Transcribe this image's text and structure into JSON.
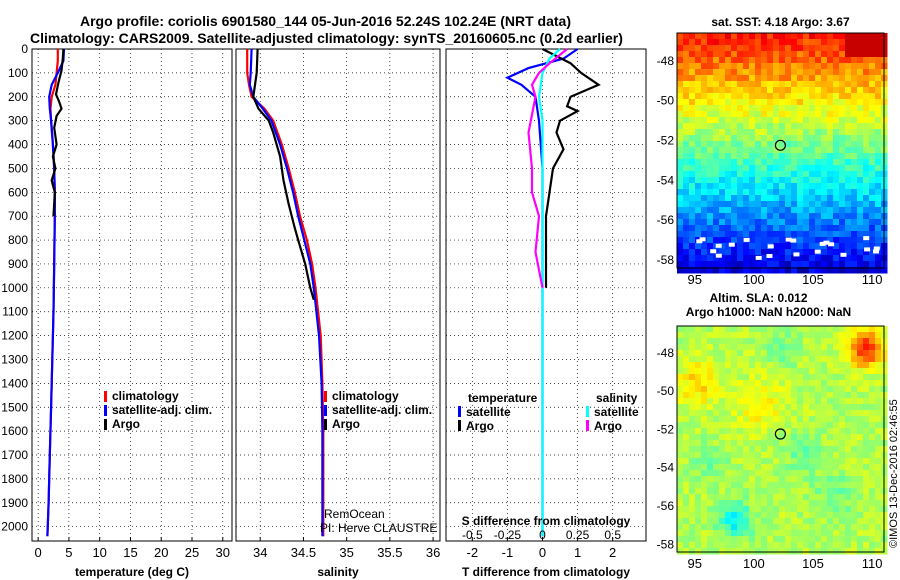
{
  "header": {
    "title1": "Argo profile: coriolis 6901580_144 05-Jun-2016 52.24S 102.24E (NRT data)",
    "title2": "Climatology: CARS2009. Satellite-adjusted climatology: synTS_20160605.nc (0.2d earlier)"
  },
  "colors": {
    "climatology": "#ff0000",
    "satellite": "#0000ff",
    "argo": "#000000",
    "sal_satellite": "#00ffff",
    "sal_argo": "#ff00ff"
  },
  "chart_data": [
    {
      "type": "line",
      "xlabel": "temperature (deg C)",
      "xlim": [
        -1,
        31.5
      ],
      "xticks": [
        0,
        5,
        10,
        15,
        20,
        25,
        30
      ],
      "xticklabels": [
        "0",
        "5",
        "10",
        "15",
        "20",
        "25",
        "30"
      ],
      "ylim": [
        2060,
        0
      ],
      "yticks": [
        0,
        100,
        200,
        300,
        400,
        500,
        600,
        700,
        800,
        900,
        1000,
        1100,
        1200,
        1300,
        1400,
        1500,
        1600,
        1700,
        1800,
        1900,
        2000
      ],
      "yticklabels": [
        "0",
        "100",
        "200",
        "300",
        "400",
        "500",
        "600",
        "700",
        "800",
        "900",
        "1000",
        "1100",
        "1200",
        "1300",
        "1400",
        "1500",
        "1600",
        "1700",
        "1800",
        "1900",
        "2000"
      ],
      "legend": [
        "climatology",
        "satellite-adj. clim.",
        "Argo"
      ],
      "series": [
        {
          "name": "climatology",
          "key": "climatology",
          "x": [
            3.2,
            3.2,
            3.0,
            2.8,
            2.2,
            2.0,
            2.1,
            2.4,
            2.6,
            2.7,
            2.7,
            2.6,
            2.5,
            2.3,
            2.1,
            1.9,
            1.7,
            1.5
          ],
          "y": [
            0,
            50,
            100,
            150,
            200,
            250,
            300,
            400,
            500,
            600,
            700,
            900,
            1100,
            1300,
            1500,
            1700,
            1900,
            2040
          ]
        },
        {
          "name": "satellite-adj. clim.",
          "key": "satellite",
          "x": [
            4.2,
            4.1,
            3.2,
            2.2,
            1.8,
            1.9,
            2.1,
            2.4,
            2.6,
            2.7,
            2.7,
            2.6,
            2.5,
            2.3,
            2.1,
            1.9,
            1.7,
            1.5
          ],
          "y": [
            0,
            50,
            100,
            150,
            200,
            250,
            300,
            400,
            500,
            600,
            700,
            900,
            1100,
            1300,
            1500,
            1700,
            1900,
            2040
          ]
        },
        {
          "name": "Argo",
          "key": "argo",
          "x": [
            4.1,
            4.0,
            3.8,
            3.3,
            2.9,
            3.4,
            3.8,
            3.0,
            2.6,
            3.0,
            2.4,
            2.8,
            2.2,
            2.7,
            2.5
          ],
          "y": [
            0,
            40,
            90,
            140,
            190,
            220,
            250,
            280,
            330,
            400,
            450,
            500,
            550,
            600,
            700
          ]
        }
      ],
      "annotations": []
    },
    {
      "type": "line",
      "xlabel": "salinity",
      "xlim": [
        33.72,
        36.08
      ],
      "xticks": [
        34,
        34.5,
        35,
        35.5,
        36
      ],
      "xticklabels": [
        "34",
        "34.5",
        "35",
        "35.5",
        "36"
      ],
      "ylim": [
        2060,
        0
      ],
      "legend": [
        "climatology",
        "satellite-adj. clim.",
        "Argo"
      ],
      "series": [
        {
          "name": "climatology",
          "key": "climatology",
          "x": [
            33.85,
            33.85,
            33.87,
            33.9,
            34.05,
            34.15,
            34.25,
            34.33,
            34.4,
            34.46,
            34.54,
            34.6,
            34.64,
            34.7,
            34.72,
            34.73,
            34.73,
            34.73
          ],
          "y": [
            0,
            100,
            150,
            200,
            250,
            300,
            400,
            500,
            600,
            700,
            800,
            900,
            1000,
            1200,
            1400,
            1600,
            1800,
            2040
          ]
        },
        {
          "name": "satellite-adj. clim.",
          "key": "satellite",
          "x": [
            33.9,
            33.89,
            33.88,
            33.92,
            34.03,
            34.13,
            34.23,
            34.31,
            34.38,
            34.44,
            34.51,
            34.58,
            34.62,
            34.68,
            34.71,
            34.72,
            34.72,
            34.72
          ],
          "y": [
            0,
            100,
            150,
            200,
            250,
            300,
            400,
            500,
            600,
            700,
            800,
            900,
            1000,
            1200,
            1400,
            1600,
            1800,
            2040
          ]
        },
        {
          "name": "Argo",
          "key": "argo",
          "x": [
            33.97,
            33.96,
            33.94,
            33.92,
            33.98,
            34.1,
            34.15,
            34.23,
            34.27,
            34.33,
            34.4,
            34.44,
            34.52,
            34.58,
            34.62
          ],
          "y": [
            0,
            100,
            150,
            200,
            250,
            300,
            350,
            450,
            550,
            650,
            750,
            800,
            900,
            1000,
            1050
          ]
        }
      ],
      "annotations": [
        "RemOcean",
        "PI: Herve CLAUSTRE"
      ]
    },
    {
      "type": "line",
      "xlabel": "T difference from climatology",
      "xlabel_top": "S difference from climatology",
      "xlim": [
        -2.75,
        2.95
      ],
      "xticks": [
        -2,
        -1,
        0,
        1,
        2
      ],
      "xticklabels": [
        "-2",
        "-1",
        "0",
        "1",
        "2"
      ],
      "xticks_top_at": [
        -2,
        -1,
        0,
        1,
        2
      ],
      "xticklabels_top": [
        "-0.5",
        "-0.25",
        "0",
        "0.25",
        "0.5"
      ],
      "ylim": [
        2060,
        0
      ],
      "legend_left_title": "temperature",
      "legend_right_title": "salinity",
      "legend_left": [
        "satellite",
        "Argo"
      ],
      "legend_right": [
        "satellite",
        "Argo"
      ],
      "series": [
        {
          "name": "satellite",
          "key": "satellite",
          "x": [
            1.0,
            0.6,
            -0.4,
            -1.0,
            -0.6,
            -0.2,
            -0.1,
            0.0,
            0.0,
            0.0,
            0.0,
            0.0,
            0.0,
            0.0,
            0.0
          ],
          "y": [
            0,
            40,
            80,
            120,
            150,
            200,
            300,
            500,
            700,
            900,
            1100,
            1300,
            1500,
            1800,
            2040
          ]
        },
        {
          "name": "Argo",
          "key": "argo",
          "x": [
            0.0,
            0.8,
            1.1,
            1.6,
            0.8,
            0.7,
            1.0,
            0.5,
            0.4,
            0.6,
            0.3,
            0.2,
            0.1,
            0.1,
            0.1
          ],
          "y": [
            0,
            60,
            100,
            150,
            200,
            240,
            260,
            300,
            350,
            420,
            500,
            600,
            700,
            800,
            1000
          ]
        },
        {
          "name": "satellite",
          "key": "sal_satellite",
          "x": [
            0.5,
            0.2,
            0.0,
            -0.1,
            0.0,
            0.0,
            0.0,
            0.0,
            0.0,
            0.0,
            0.0,
            0.0
          ],
          "y": [
            0,
            40,
            100,
            200,
            300,
            500,
            800,
            1100,
            1400,
            1700,
            1900,
            2040
          ]
        },
        {
          "name": "Argo",
          "key": "sal_argo",
          "x": [
            0.7,
            0.2,
            -0.1,
            -0.3,
            -0.2,
            -0.4,
            -0.3,
            -0.3,
            -0.1,
            -0.2,
            0.0
          ],
          "y": [
            0,
            60,
            100,
            150,
            200,
            350,
            500,
            600,
            700,
            850,
            1000
          ]
        }
      ]
    },
    {
      "type": "heatmap",
      "title": "sat. SST: 4.18 Argo: 3.67",
      "xticks": [
        95,
        100,
        105,
        110
      ],
      "yticks": [
        -48,
        -50,
        -52,
        -54,
        -56,
        -58
      ],
      "xlim": [
        93.5,
        111
      ],
      "ylim": [
        -58.4,
        -46.6
      ],
      "marker": [
        102.24,
        -52.24
      ]
    },
    {
      "type": "heatmap",
      "title": "Altim. SLA: 0.012",
      "subtitle": "Argo h1000: NaN h2000: NaN",
      "xticks": [
        95,
        100,
        105,
        110
      ],
      "yticks": [
        -48,
        -50,
        -52,
        -54,
        -56,
        -58
      ],
      "xlim": [
        93.5,
        111
      ],
      "ylim": [
        -58.4,
        -46.6
      ],
      "marker": [
        102.24,
        -52.24
      ]
    }
  ],
  "watermark": "©IMOS 13-Dec-2016 02:46:55"
}
